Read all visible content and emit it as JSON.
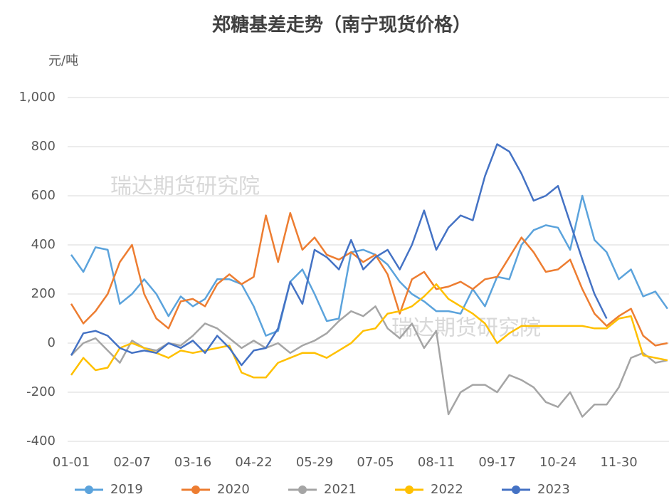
{
  "chart_data": {
    "type": "line",
    "title": "郑糖基差走势（南宁现货价格）",
    "y_unit": "元/吨",
    "watermarks": [
      "瑞达期货研究院",
      "瑞达期货研究院"
    ],
    "categories": [
      "01-01",
      null,
      null,
      null,
      null,
      "02-07",
      null,
      null,
      null,
      null,
      "03-16",
      null,
      null,
      null,
      null,
      "04-22",
      null,
      null,
      null,
      null,
      "05-29",
      null,
      null,
      null,
      null,
      "07-05",
      null,
      null,
      null,
      null,
      "08-11",
      null,
      null,
      null,
      null,
      "09-17",
      null,
      null,
      null,
      null,
      "10-24",
      null,
      null,
      null,
      null,
      "11-30",
      null,
      null,
      null,
      null
    ],
    "ylim": [
      -400,
      1000
    ],
    "yticks": [
      -400,
      -200,
      0,
      200,
      400,
      600,
      800,
      {
        "value": 1000,
        "label": "1,000"
      }
    ],
    "grid": true,
    "legend": "bottom",
    "series": [
      {
        "name": "2019",
        "color": "#5ba3dc",
        "values": [
          360,
          290,
          390,
          380,
          160,
          200,
          260,
          200,
          110,
          190,
          150,
          180,
          260,
          260,
          240,
          150,
          30,
          50,
          250,
          300,
          200,
          90,
          100,
          370,
          380,
          360,
          320,
          250,
          200,
          170,
          130,
          130,
          120,
          220,
          150,
          270,
          260,
          400,
          460,
          480,
          470,
          380,
          600,
          420,
          370,
          260,
          300,
          190,
          210,
          140
        ]
      },
      {
        "name": "2020",
        "color": "#ed7d31",
        "values": [
          160,
          80,
          130,
          200,
          330,
          400,
          200,
          100,
          60,
          170,
          180,
          150,
          240,
          280,
          240,
          270,
          520,
          330,
          530,
          380,
          430,
          360,
          340,
          370,
          330,
          360,
          280,
          120,
          260,
          290,
          220,
          230,
          250,
          220,
          260,
          270,
          350,
          430,
          370,
          290,
          300,
          340,
          220,
          120,
          70,
          110,
          140,
          30,
          -10,
          0
        ]
      },
      {
        "name": "2021",
        "color": "#a5a5a5",
        "values": [
          -50,
          0,
          20,
          -30,
          -80,
          10,
          -20,
          -30,
          0,
          -10,
          30,
          80,
          60,
          20,
          -20,
          10,
          -20,
          0,
          -40,
          -10,
          10,
          40,
          90,
          130,
          110,
          150,
          60,
          20,
          80,
          -20,
          50,
          -290,
          -200,
          -170,
          -170,
          -200,
          -130,
          -150,
          -180,
          -240,
          -260,
          -200,
          -300,
          -250,
          -250,
          -180,
          -60,
          -40,
          -80,
          -70
        ]
      },
      {
        "name": "2022",
        "color": "#ffc000",
        "values": [
          -130,
          -60,
          -110,
          -100,
          -20,
          0,
          -20,
          -40,
          -60,
          -30,
          -40,
          -30,
          -20,
          -10,
          -120,
          -140,
          -140,
          -80,
          -60,
          -40,
          -40,
          -60,
          -30,
          0,
          50,
          60,
          120,
          130,
          150,
          190,
          240,
          180,
          150,
          120,
          80,
          0,
          40,
          70,
          70,
          70,
          70,
          70,
          70,
          60,
          60,
          100,
          110,
          -50,
          -60,
          -70
        ]
      },
      {
        "name": "2023",
        "color": "#4472c4",
        "values": [
          -50,
          40,
          50,
          30,
          -20,
          -40,
          -30,
          -40,
          0,
          -20,
          10,
          -40,
          30,
          -20,
          -90,
          -30,
          -20,
          60,
          250,
          160,
          380,
          350,
          300,
          420,
          300,
          350,
          380,
          300,
          400,
          540,
          380,
          470,
          520,
          500,
          680,
          810,
          780,
          690,
          580,
          600,
          640,
          490,
          340,
          200,
          100,
          null,
          null,
          null,
          null,
          null
        ]
      }
    ]
  }
}
